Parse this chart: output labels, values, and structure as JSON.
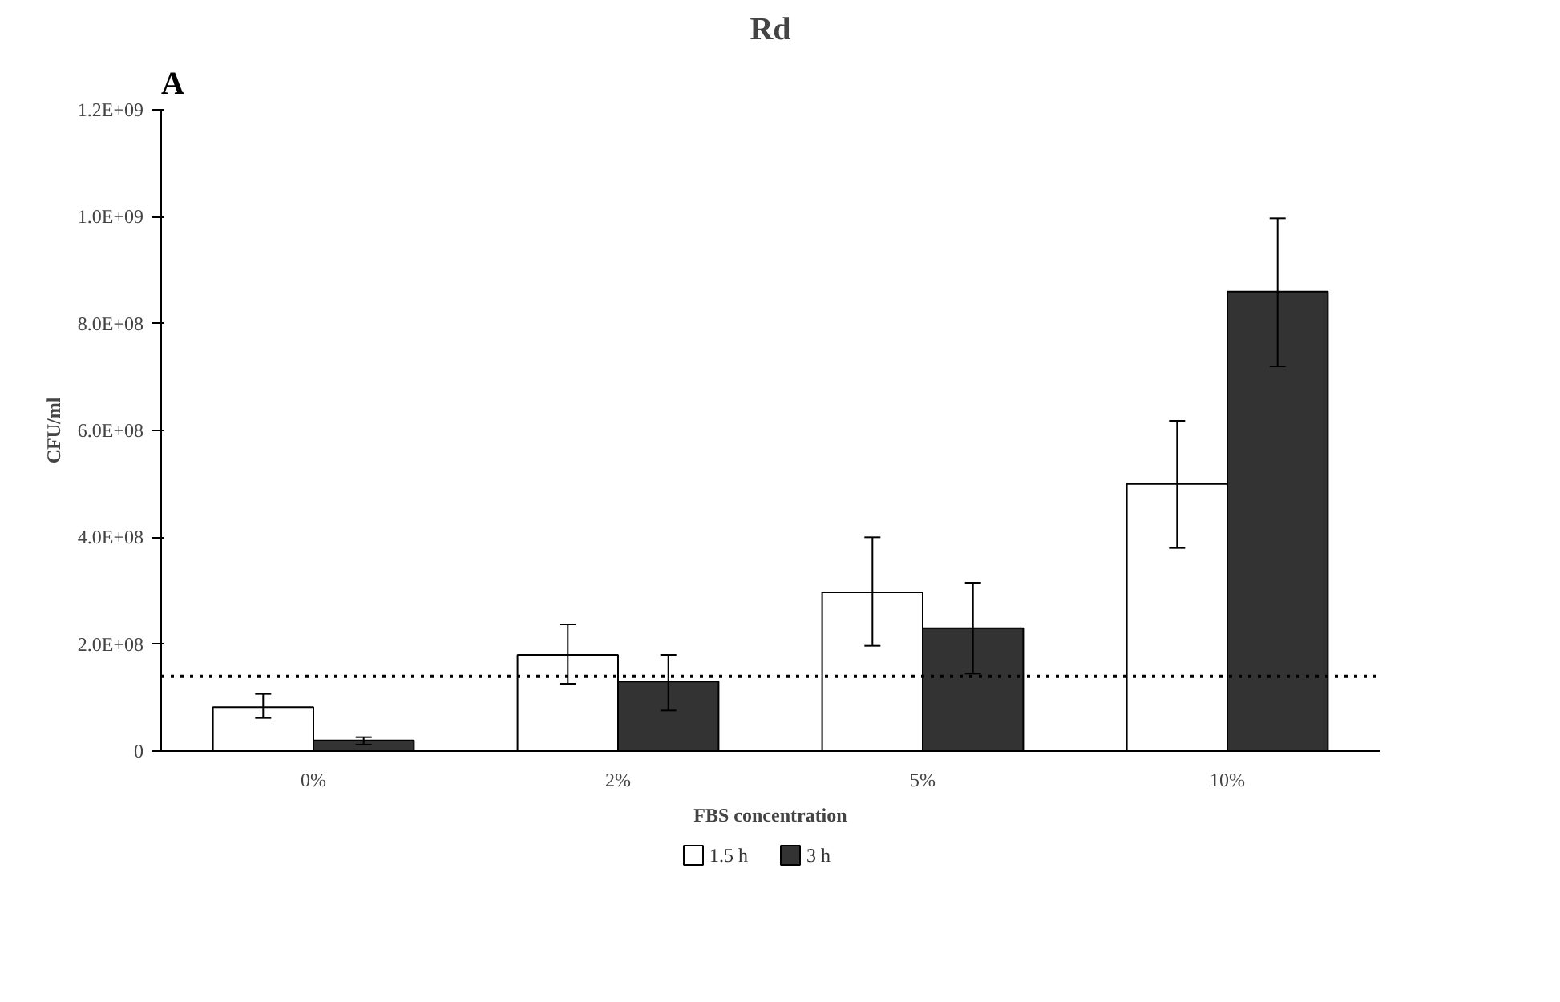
{
  "chart_data": {
    "type": "bar",
    "title": "Rd",
    "xlabel": "FBS concentration",
    "ylabel": "CFU/ml",
    "annotations": [
      "A"
    ],
    "categories": [
      "0%",
      "2%",
      "5%",
      "10%"
    ],
    "series": [
      {
        "name": "1.5 h",
        "color": "#ffffff",
        "values": [
          82000000,
          180000000,
          297000000,
          500000000
        ],
        "errors": [
          [
            62000000,
            107000000
          ],
          [
            126000000,
            237000000
          ],
          [
            197000000,
            400000000
          ],
          [
            380000000,
            618000000
          ]
        ]
      },
      {
        "name": "3 h",
        "color": "#333333",
        "values": [
          20000000,
          130000000,
          230000000,
          860000000
        ],
        "errors": [
          [
            12000000,
            26000000
          ],
          [
            76000000,
            180000000
          ],
          [
            145000000,
            315000000
          ],
          [
            720000000,
            997000000
          ]
        ]
      }
    ],
    "ylim": [
      0,
      1200000000
    ],
    "yticks": [
      {
        "value": 0,
        "label": "0"
      },
      {
        "value": 200000000,
        "label": "2.0E+08"
      },
      {
        "value": 400000000,
        "label": "4.0E+08"
      },
      {
        "value": 600000000,
        "label": "6.0E+08"
      },
      {
        "value": 800000000,
        "label": "8.0E+08"
      },
      {
        "value": 1000000000,
        "label": "1.0E+09"
      },
      {
        "value": 1200000000,
        "label": "1.2E+09"
      }
    ],
    "ref_lines": [
      {
        "axis": "y",
        "value": 140000000,
        "line_style": "dotted",
        "color": "#000000"
      }
    ],
    "grid": false,
    "legend": "bottom"
  }
}
